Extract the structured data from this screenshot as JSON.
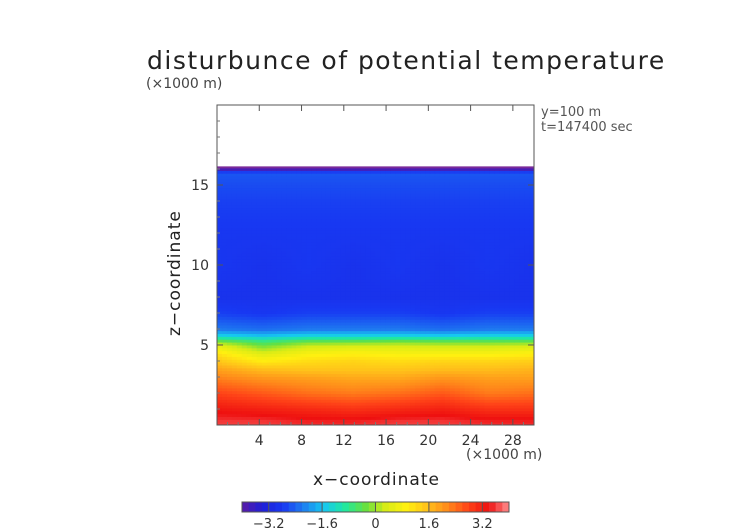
{
  "chart_data": {
    "type": "heatmap",
    "title": "disturbunce of potential temperature",
    "unit_label": "(×1000 m)",
    "x_unit_label": "(×1000 m)",
    "info": {
      "y_line": "y=100 m",
      "t_line": "t=147400 sec"
    },
    "xlabel": "x−coordinate",
    "ylabel": "z−coordinate",
    "xlim": [
      0,
      30
    ],
    "ylim": [
      0,
      20
    ],
    "xticks": [
      4,
      8,
      12,
      16,
      20,
      24,
      28
    ],
    "yticks": [
      5,
      10,
      15
    ],
    "field": {
      "description_rows_z": [
        0.2,
        1,
        2,
        3,
        3.5,
        4,
        4.5,
        5,
        5.3,
        5.6,
        6,
        7,
        8,
        10,
        12,
        14,
        15,
        15.8,
        16.0
      ],
      "values": [
        [
          3.6,
          3.6,
          3.5,
          3.5,
          3.6,
          3.6,
          3.5,
          3.5
        ],
        [
          3.3,
          3.2,
          3.1,
          3.0,
          3.1,
          3.2,
          3.0,
          3.0
        ],
        [
          2.8,
          2.6,
          2.4,
          2.3,
          2.4,
          2.6,
          2.3,
          2.4
        ],
        [
          2.2,
          2.0,
          1.9,
          1.8,
          1.8,
          2.0,
          1.9,
          1.9
        ],
        [
          1.9,
          1.6,
          1.5,
          1.5,
          1.5,
          1.6,
          1.6,
          1.7
        ],
        [
          1.5,
          1.0,
          1.2,
          1.3,
          1.2,
          1.3,
          1.3,
          1.4
        ],
        [
          1.1,
          0.4,
          0.8,
          0.9,
          0.8,
          0.8,
          0.8,
          0.9
        ],
        [
          0.5,
          -0.3,
          0.2,
          0.3,
          0.3,
          0.2,
          0.2,
          0.3
        ],
        [
          -0.4,
          -0.8,
          -0.5,
          -0.5,
          -0.4,
          -0.5,
          -0.5,
          -0.5
        ],
        [
          -1.4,
          -1.6,
          -1.4,
          -1.4,
          -1.4,
          -1.5,
          -1.4,
          -1.4
        ],
        [
          -2.2,
          -2.3,
          -2.2,
          -2.2,
          -2.2,
          -2.3,
          -2.2,
          -2.2
        ],
        [
          -2.7,
          -2.8,
          -2.7,
          -2.7,
          -2.7,
          -2.8,
          -2.7,
          -2.7
        ],
        [
          -2.9,
          -2.9,
          -2.9,
          -2.9,
          -2.9,
          -2.9,
          -2.9,
          -2.9
        ],
        [
          -2.8,
          -2.9,
          -2.8,
          -2.9,
          -2.8,
          -2.9,
          -2.8,
          -2.9
        ],
        [
          -2.8,
          -2.8,
          -2.8,
          -2.8,
          -2.8,
          -2.8,
          -2.8,
          -2.8
        ],
        [
          -2.7,
          -2.7,
          -2.7,
          -2.7,
          -2.7,
          -2.7,
          -2.7,
          -2.7
        ],
        [
          -2.6,
          -2.6,
          -2.6,
          -2.6,
          -2.6,
          -2.6,
          -2.6,
          -2.6
        ],
        [
          -2.5,
          -2.5,
          -2.5,
          -2.5,
          -2.5,
          -2.5,
          -2.5,
          -2.5
        ],
        [
          -3.8,
          -3.8,
          -3.8,
          -3.8,
          -3.8,
          -3.8,
          -3.8,
          -3.8
        ]
      ],
      "x_columns": [
        0,
        4.3,
        8.6,
        12.9,
        17.1,
        21.4,
        25.7,
        30
      ],
      "top_boundary_z": 16.1
    },
    "colorbar": {
      "range": [
        -4.0,
        4.0
      ],
      "ticks": [
        "−3.2",
        "−1.6",
        "0",
        "1.6",
        "3.2"
      ],
      "tick_values": [
        -3.2,
        -1.6,
        0,
        1.6,
        3.2
      ],
      "colormap": [
        "#5a1ca6",
        "#1f1fd6",
        "#1838f2",
        "#1e7ff0",
        "#16c8f0",
        "#20e8a0",
        "#66e040",
        "#d8ec16",
        "#fff010",
        "#ffc21a",
        "#ff8a1a",
        "#ff4418",
        "#ee1010",
        "#ff8f8f"
      ]
    }
  }
}
